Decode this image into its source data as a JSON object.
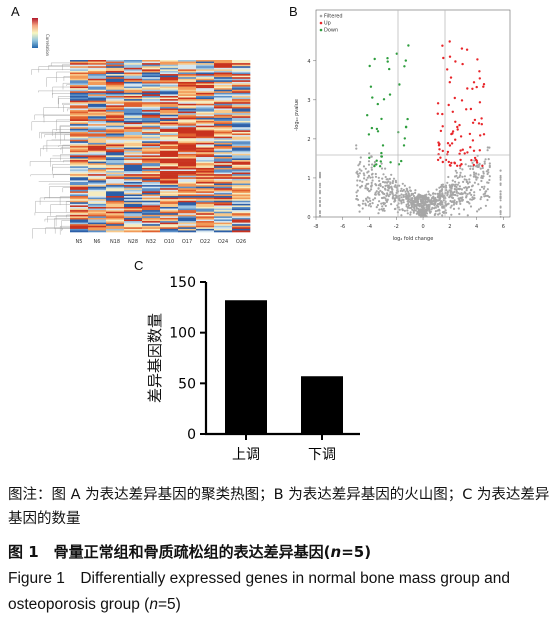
{
  "panels": {
    "A": {
      "letter": "A",
      "legend_label": "Correlation",
      "columns": [
        "N5",
        "N6",
        "N18",
        "N28",
        "N32",
        "O10",
        "O17",
        "O22",
        "O24",
        "O26"
      ]
    },
    "B": {
      "letter": "B",
      "legend": [
        "Filtered",
        "Up",
        "Down"
      ],
      "colors": {
        "filtered": "#a6a6a6",
        "up": "#e8252a",
        "down": "#2e9e3e"
      },
      "xlabel": "log₂ fold change",
      "ylabel": "-log₁₀ pvalue",
      "xticks": [
        "-8",
        "-6",
        "-4",
        "-2",
        "0",
        "2",
        "4",
        "6"
      ],
      "yticks": [
        "0",
        "1",
        "2",
        "3",
        "4"
      ]
    },
    "C": {
      "letter": "C"
    }
  },
  "chart_data": {
    "type": "bar",
    "categories": [
      "上调",
      "下调"
    ],
    "values": [
      132,
      57
    ],
    "ylabel": "差异基因数量",
    "ylim": [
      0,
      150
    ],
    "yticks": [
      0,
      50,
      100,
      150
    ],
    "bar_color": "#000000"
  },
  "caption": {
    "note": "图注：图 A 为表达差异基因的聚类热图；B 为表达差异基因的火山图；C 为表达差异基因的数量",
    "title_cn_prefix": "图 1　骨量正常组和骨质疏松组的表达差异基因(",
    "title_cn_n": "n",
    "title_cn_suffix": "=5)",
    "title_en_prefix": "Figure 1　Differentially expressed genes in normal bone mass group and osteoporosis group (",
    "title_en_n": "n",
    "title_en_suffix": "=5)"
  }
}
